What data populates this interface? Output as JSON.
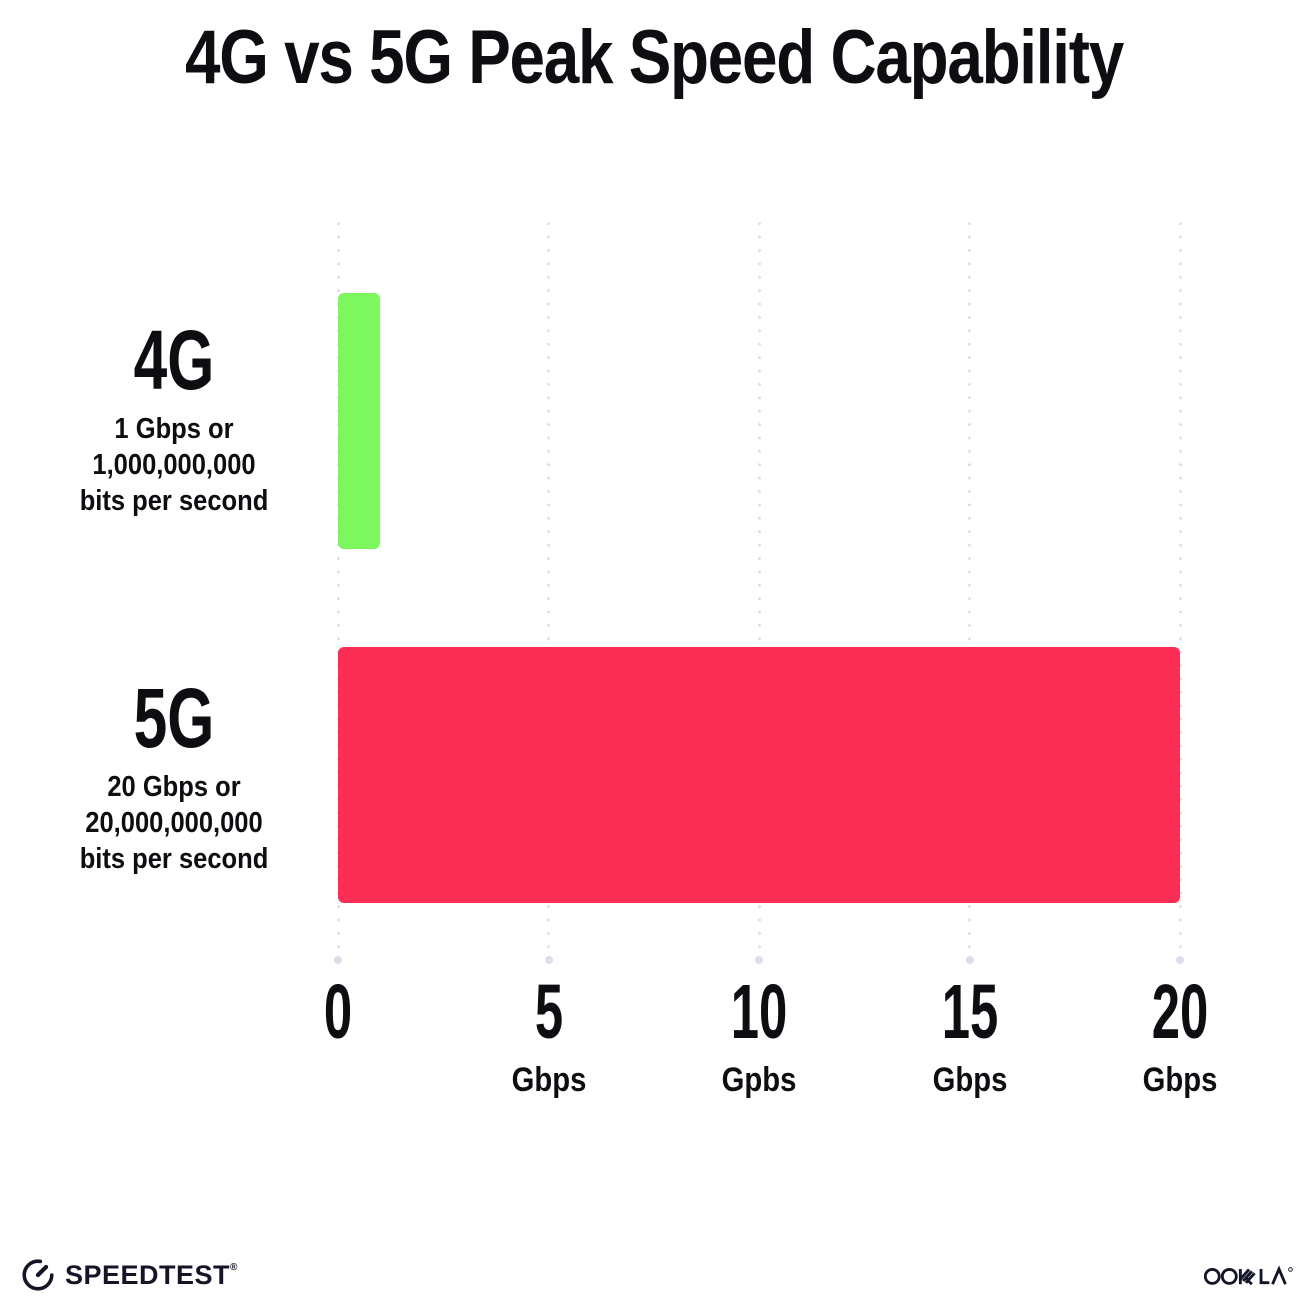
{
  "title": "4G vs 5G Peak Speed Capability",
  "chart_data": {
    "type": "bar",
    "orientation": "horizontal",
    "title": "4G vs 5G Peak Speed Capability",
    "categories": [
      "4G",
      "5G"
    ],
    "values": [
      1,
      20
    ],
    "xlim": [
      0,
      20
    ],
    "grid": "dotted-vertical",
    "rows": [
      {
        "label": "4G",
        "sublabel_lines": [
          "1 Gbps or",
          "1,000,000,000",
          "bits per second"
        ],
        "value": 1,
        "color": "#7cf85e"
      },
      {
        "label": "5G",
        "sublabel_lines": [
          "20 Gbps or",
          "20,000,000,000",
          "bits per second"
        ],
        "value": 20,
        "color": "#fc2d55"
      }
    ],
    "x_ticks": [
      {
        "value": 0,
        "label": "0",
        "unit": ""
      },
      {
        "value": 5,
        "label": "5",
        "unit": "Gbps"
      },
      {
        "value": 10,
        "label": "10",
        "unit": "Gpbs"
      },
      {
        "value": 15,
        "label": "15",
        "unit": "Gbps"
      },
      {
        "value": 20,
        "label": "20",
        "unit": "Gbps"
      }
    ]
  },
  "footer": {
    "speedtest_label": "SPEEDTEST",
    "speedtest_trademark": "®",
    "speedtest_icon": "gauge-icon",
    "ookla_label": "OOKLA",
    "ookla_trademark": "®"
  },
  "colors": {
    "background": "#ffffff",
    "text": "#0e0e12",
    "bar_4g": "#7cf85e",
    "bar_5g": "#fc2d55",
    "gridline_dot": "#dcdee9",
    "logo": "#141526"
  }
}
